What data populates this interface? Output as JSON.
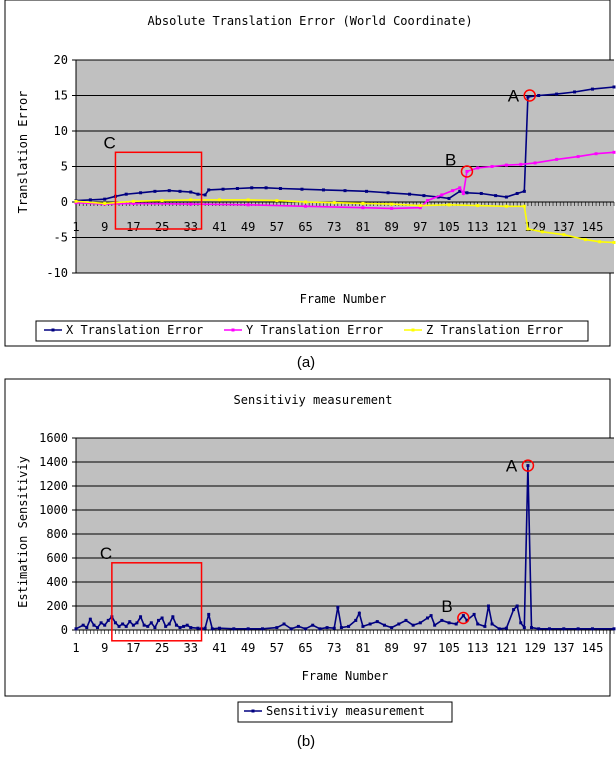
{
  "figure": {
    "panel_a_caption": "(a)",
    "panel_b_caption": "(b)"
  },
  "colors": {
    "plot_bg": "#c0c0c0",
    "x_series": "#000080",
    "y_series": "#ff00ff",
    "z_series": "#ffff00",
    "highlight": "#ff0000",
    "border": "#000000"
  },
  "chart_data": [
    {
      "id": "a",
      "type": "line",
      "title": "Absolute Translation Error (World Coordinate)",
      "xlabel": "Frame Number",
      "ylabel": "Translation Error",
      "ylim": [
        -10,
        20
      ],
      "yticks": [
        -10,
        -5,
        0,
        5,
        10,
        15,
        20
      ],
      "xlim": [
        1,
        151
      ],
      "xticks": [
        1,
        9,
        17,
        25,
        33,
        41,
        49,
        57,
        65,
        73,
        81,
        89,
        97,
        105,
        113,
        121,
        129,
        137,
        145
      ],
      "grid": true,
      "legend": "bottom",
      "series": [
        {
          "name": "X Translation Error",
          "color": "#000080",
          "points": [
            [
              1,
              0.2
            ],
            [
              5,
              0.3
            ],
            [
              9,
              0.4
            ],
            [
              12,
              0.8
            ],
            [
              15,
              1.1
            ],
            [
              19,
              1.3
            ],
            [
              23,
              1.5
            ],
            [
              27,
              1.6
            ],
            [
              30,
              1.5
            ],
            [
              33,
              1.4
            ],
            [
              35,
              1.1
            ],
            [
              37,
              1.0
            ],
            [
              38,
              1.7
            ],
            [
              42,
              1.8
            ],
            [
              46,
              1.9
            ],
            [
              50,
              2.0
            ],
            [
              54,
              2.0
            ],
            [
              58,
              1.9
            ],
            [
              64,
              1.8
            ],
            [
              70,
              1.7
            ],
            [
              76,
              1.6
            ],
            [
              82,
              1.5
            ],
            [
              88,
              1.3
            ],
            [
              94,
              1.1
            ],
            [
              98,
              0.9
            ],
            [
              102,
              0.7
            ],
            [
              105,
              0.5
            ],
            [
              108,
              1.5
            ],
            [
              110,
              1.3
            ],
            [
              114,
              1.2
            ],
            [
              118,
              0.9
            ],
            [
              121,
              0.7
            ],
            [
              124,
              1.2
            ],
            [
              126,
              1.5
            ],
            [
              127,
              14.8
            ],
            [
              130,
              15.0
            ],
            [
              135,
              15.2
            ],
            [
              140,
              15.5
            ],
            [
              145,
              15.9
            ],
            [
              151,
              16.2
            ]
          ]
        },
        {
          "name": "Y Translation Error",
          "color": "#ff00ff",
          "points": [
            [
              1,
              -0.1
            ],
            [
              9,
              -0.3
            ],
            [
              17,
              -0.2
            ],
            [
              33,
              -0.3
            ],
            [
              49,
              -0.4
            ],
            [
              65,
              -0.6
            ],
            [
              81,
              -0.8
            ],
            [
              89,
              -0.9
            ],
            [
              97,
              -0.8
            ],
            [
              99,
              0.2
            ],
            [
              103,
              1.0
            ],
            [
              106,
              1.6
            ],
            [
              108,
              2.0
            ],
            [
              109,
              1.2
            ],
            [
              110,
              4.3
            ],
            [
              113,
              4.8
            ],
            [
              117,
              5.0
            ],
            [
              121,
              5.2
            ],
            [
              125,
              5.3
            ],
            [
              129,
              5.5
            ],
            [
              135,
              6.0
            ],
            [
              141,
              6.4
            ],
            [
              146,
              6.8
            ],
            [
              151,
              7.0
            ]
          ]
        },
        {
          "name": "Z Translation Error",
          "color": "#ffff00",
          "points": [
            [
              1,
              0.1
            ],
            [
              9,
              -0.2
            ],
            [
              17,
              0.1
            ],
            [
              25,
              0.2
            ],
            [
              33,
              0.3
            ],
            [
              41,
              0.3
            ],
            [
              49,
              0.3
            ],
            [
              57,
              0.2
            ],
            [
              65,
              0.0
            ],
            [
              73,
              -0.1
            ],
            [
              81,
              -0.2
            ],
            [
              89,
              -0.3
            ],
            [
              97,
              -0.5
            ],
            [
              105,
              -0.4
            ],
            [
              113,
              -0.5
            ],
            [
              121,
              -0.6
            ],
            [
              126,
              -0.6
            ],
            [
              127,
              -3.8
            ],
            [
              131,
              -4.2
            ],
            [
              137,
              -4.6
            ],
            [
              143,
              -5.3
            ],
            [
              147,
              -5.6
            ],
            [
              151,
              -5.7
            ]
          ]
        }
      ],
      "annotations": [
        {
          "label": "A",
          "x": 127.5,
          "y": 15
        },
        {
          "label": "B",
          "x": 110,
          "y": 4.3
        },
        {
          "label": "C",
          "x": [
            12,
            36
          ],
          "y": [
            -3.8,
            7
          ]
        }
      ]
    },
    {
      "id": "b",
      "type": "line",
      "title": "Sensitiviy measurement",
      "xlabel": "Frame Number",
      "ylabel": "Estimation Sensitiviy",
      "ylim": [
        0,
        1600
      ],
      "yticks": [
        0,
        200,
        400,
        600,
        800,
        1000,
        1200,
        1400,
        1600
      ],
      "xlim": [
        1,
        151
      ],
      "xticks": [
        1,
        9,
        17,
        25,
        33,
        41,
        49,
        57,
        65,
        73,
        81,
        89,
        97,
        105,
        113,
        121,
        129,
        137,
        145
      ],
      "grid": true,
      "legend": "bottom",
      "series": [
        {
          "name": "Sensitiviy measurement",
          "color": "#000080",
          "points": [
            [
              1,
              10
            ],
            [
              3,
              40
            ],
            [
              4,
              20
            ],
            [
              5,
              90
            ],
            [
              6,
              40
            ],
            [
              7,
              20
            ],
            [
              8,
              60
            ],
            [
              9,
              40
            ],
            [
              10,
              80
            ],
            [
              11,
              110
            ],
            [
              12,
              60
            ],
            [
              13,
              30
            ],
            [
              14,
              50
            ],
            [
              15,
              30
            ],
            [
              16,
              70
            ],
            [
              17,
              40
            ],
            [
              18,
              60
            ],
            [
              19,
              110
            ],
            [
              20,
              40
            ],
            [
              21,
              30
            ],
            [
              22,
              60
            ],
            [
              23,
              20
            ],
            [
              24,
              80
            ],
            [
              25,
              100
            ],
            [
              26,
              30
            ],
            [
              27,
              50
            ],
            [
              28,
              110
            ],
            [
              29,
              40
            ],
            [
              30,
              20
            ],
            [
              31,
              30
            ],
            [
              32,
              40
            ],
            [
              33,
              20
            ],
            [
              35,
              15
            ],
            [
              36,
              10
            ],
            [
              37,
              15
            ],
            [
              38,
              130
            ],
            [
              39,
              10
            ],
            [
              41,
              15
            ],
            [
              45,
              10
            ],
            [
              49,
              10
            ],
            [
              53,
              10
            ],
            [
              57,
              20
            ],
            [
              59,
              50
            ],
            [
              61,
              10
            ],
            [
              63,
              30
            ],
            [
              65,
              10
            ],
            [
              67,
              40
            ],
            [
              69,
              10
            ],
            [
              71,
              20
            ],
            [
              73,
              15
            ],
            [
              74,
              190
            ],
            [
              75,
              20
            ],
            [
              77,
              30
            ],
            [
              79,
              80
            ],
            [
              80,
              140
            ],
            [
              81,
              30
            ],
            [
              83,
              50
            ],
            [
              85,
              70
            ],
            [
              87,
              40
            ],
            [
              89,
              20
            ],
            [
              91,
              50
            ],
            [
              93,
              80
            ],
            [
              95,
              40
            ],
            [
              97,
              60
            ],
            [
              99,
              100
            ],
            [
              100,
              120
            ],
            [
              101,
              40
            ],
            [
              103,
              80
            ],
            [
              105,
              60
            ],
            [
              107,
              50
            ],
            [
              109,
              120
            ],
            [
              110,
              80
            ],
            [
              112,
              130
            ],
            [
              113,
              50
            ],
            [
              115,
              30
            ],
            [
              116,
              200
            ],
            [
              117,
              50
            ],
            [
              119,
              10
            ],
            [
              121,
              15
            ],
            [
              123,
              170
            ],
            [
              124,
              200
            ],
            [
              125,
              60
            ],
            [
              126,
              20
            ],
            [
              127,
              1370
            ],
            [
              128,
              20
            ],
            [
              130,
              10
            ],
            [
              133,
              10
            ],
            [
              137,
              10
            ],
            [
              141,
              10
            ],
            [
              145,
              10
            ],
            [
              151,
              10
            ]
          ]
        }
      ],
      "annotations": [
        {
          "label": "A",
          "x": 127,
          "y": 1370
        },
        {
          "label": "B",
          "x": 109,
          "y": 100
        },
        {
          "label": "C",
          "x": [
            11,
            36
          ],
          "y": [
            -90,
            560
          ]
        }
      ]
    }
  ]
}
